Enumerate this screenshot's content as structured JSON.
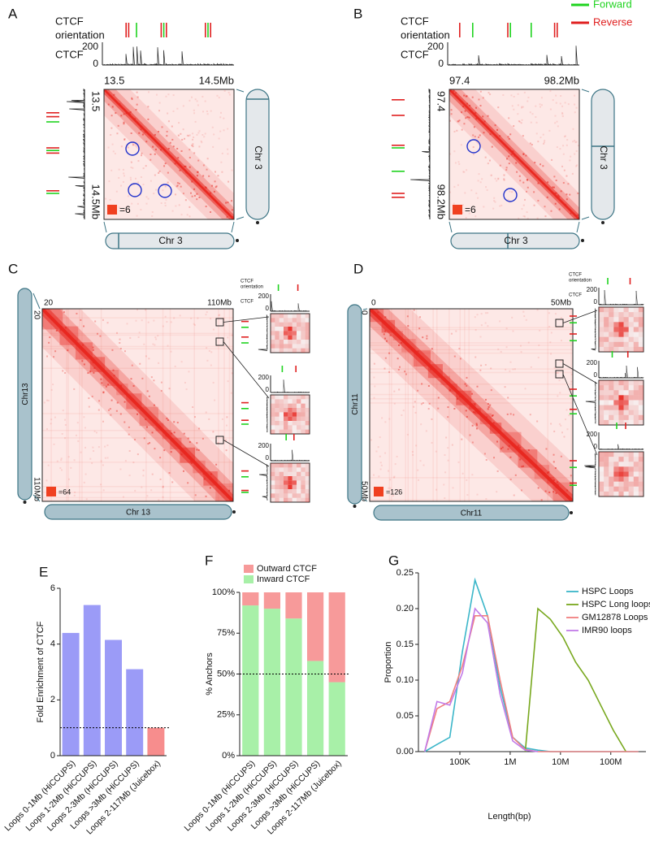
{
  "panels": [
    {
      "panel_label": "A",
      "orientation_label": [
        "CTCF",
        "orientation"
      ],
      "track_label": "CTCF",
      "track_ticks": [
        0,
        200
      ],
      "top_ticks": [
        "13.5",
        "14.5Mb"
      ],
      "left_ticks": [
        "13.5",
        "14.5Mb"
      ],
      "scale_label": "=6",
      "chromosome_right": "Chr 3",
      "chromosome_bottom": "Chr 3"
    },
    {
      "panel_label": "B",
      "legend": [
        {
          "name": "Forward",
          "color": "#1fd31f"
        },
        {
          "name": "Reverse",
          "color": "#e02020"
        }
      ],
      "orientation_label": [
        "CTCF",
        "orientation"
      ],
      "track_label": "CTCF",
      "track_ticks": [
        0,
        200
      ],
      "top_ticks": [
        "97.4",
        "98.2Mb"
      ],
      "left_ticks": [
        "97.4",
        "98.2Mb"
      ],
      "scale_label": "=6",
      "chromosome_right": "Chr 3",
      "chromosome_bottom": "Chr 3"
    },
    {
      "panel_label": "C",
      "orientation_label": [
        "CTCF",
        "orientation"
      ],
      "track_label": "CTCF",
      "top_ticks": [
        "20",
        "110Mb"
      ],
      "left_ticks": [
        "20",
        "110Mb"
      ],
      "scale_label": "=64",
      "chromosome_left": "Chr13",
      "chromosome_bottom": "Chr 13",
      "insets": [
        {
          "track_ticks": [
            0,
            200
          ]
        },
        {
          "track_ticks": [
            0,
            200
          ]
        },
        {
          "track_ticks": [
            0,
            200
          ]
        }
      ]
    },
    {
      "panel_label": "D",
      "orientation_label": [
        "CTCF",
        "orientation"
      ],
      "track_label": "CTCF",
      "top_ticks": [
        "0",
        "50Mb"
      ],
      "left_ticks": [
        "0",
        "50Mb"
      ],
      "scale_label": "=126",
      "chromosome_left": "Chr11",
      "chromosome_bottom": "Chr11",
      "insets": [
        {
          "track_ticks": [
            0,
            200
          ]
        },
        {
          "track_ticks": [
            0,
            200
          ]
        },
        {
          "track_ticks": [
            0,
            200
          ]
        }
      ]
    }
  ],
  "chart_data": [
    {
      "type": "bar",
      "panel_label": "E",
      "ylabel": "Fold Enrichment of CTCF",
      "categories": [
        "Loops 0-1Mb (HiCCUPS)",
        "Loops 1-2Mb (HiCCUPS)",
        "Loops 2-3Mb (HiCCUPS)",
        "Loops >3Mb (HiCCUPS)",
        "Loops 2-117Mb (Juicebox)"
      ],
      "values": [
        4.4,
        5.4,
        4.15,
        3.1,
        1.0
      ],
      "colors": [
        "#9b9bf7",
        "#9b9bf7",
        "#9b9bf7",
        "#9b9bf7",
        "#f78d8d"
      ],
      "ylim": [
        0,
        6
      ],
      "yticks": [
        0,
        2,
        4,
        6
      ],
      "hline": 1
    },
    {
      "type": "stacked_bar",
      "panel_label": "F",
      "ylabel": "% Anchors",
      "categories": [
        "Loops 0-1Mb (HiCCUPS)",
        "Loops 1-2Mb (HiCCUPS)",
        "Loops 2-3Mb (HiCCUPS)",
        "Loops >3Mb (HiCCUPS)",
        "Loops 2-117Mb (Juicebox)"
      ],
      "series": [
        {
          "name": "Inward CTCF",
          "color": "#a8f0a8",
          "values": [
            92,
            90,
            84,
            58,
            45
          ]
        },
        {
          "name": "Outward CTCF",
          "color": "#f79a9a",
          "values": [
            8,
            10,
            16,
            42,
            55
          ]
        }
      ],
      "ylim": [
        0,
        100
      ],
      "yticks": [
        {
          "value": 0,
          "label": "0%"
        },
        {
          "value": 25,
          "label": "25%"
        },
        {
          "value": 50,
          "label": "50%"
        },
        {
          "value": 75,
          "label": "75%"
        },
        {
          "value": 100,
          "label": "100%"
        }
      ],
      "hline": 50
    },
    {
      "type": "line",
      "panel_label": "G",
      "xlabel": "Length(bp)",
      "ylabel": "Proportion",
      "log_x": true,
      "x": [
        20000,
        35000,
        63000,
        112000,
        200000,
        355000,
        630000,
        1120000,
        2000000,
        3550000,
        6300000,
        11200000,
        20000000,
        35500000,
        63000000,
        112000000,
        200000000,
        355000000
      ],
      "series": [
        {
          "name": "HSPC Loops",
          "color": "#3bb6c9",
          "values": [
            0,
            0.01,
            0.02,
            0.14,
            0.24,
            0.19,
            0.09,
            0.02,
            0.005,
            0.002,
            0,
            0,
            0,
            0,
            0,
            0,
            0,
            0
          ]
        },
        {
          "name": "HSPC Long loops",
          "color": "#78a81e",
          "values": [
            null,
            null,
            null,
            null,
            null,
            null,
            null,
            null,
            0,
            0.2,
            0.185,
            0.16,
            0.125,
            0.1,
            0.065,
            0.03,
            0,
            null
          ]
        },
        {
          "name": "GM12878 Loops",
          "color": "#f07f7f",
          "values": [
            0,
            0.06,
            0.07,
            0.12,
            0.19,
            0.19,
            0.1,
            0.02,
            0.003,
            0,
            0,
            0,
            0,
            0,
            0,
            0,
            0,
            0
          ]
        },
        {
          "name": "IMR90 loops",
          "color": "#c27be8",
          "values": [
            0,
            0.07,
            0.065,
            0.11,
            0.2,
            0.18,
            0.08,
            0.015,
            0.002,
            0,
            null,
            null,
            null,
            null,
            null,
            null,
            null,
            null
          ]
        }
      ],
      "xlim": [
        15000,
        500000000
      ],
      "xticks": [
        {
          "value": 100000,
          "label": "100K"
        },
        {
          "value": 1000000,
          "label": "1M"
        },
        {
          "value": 10000000,
          "label": "10M"
        },
        {
          "value": 100000000,
          "label": "100M"
        }
      ],
      "ylim": [
        0,
        0.25
      ],
      "yticks": [
        {
          "value": 0,
          "label": "0.00"
        },
        {
          "value": 0.05,
          "label": "0.05"
        },
        {
          "value": 0.1,
          "label": "0.10"
        },
        {
          "value": 0.15,
          "label": "0.15"
        },
        {
          "value": 0.2,
          "label": "0.20"
        },
        {
          "value": 0.25,
          "label": "0.25"
        }
      ]
    }
  ]
}
